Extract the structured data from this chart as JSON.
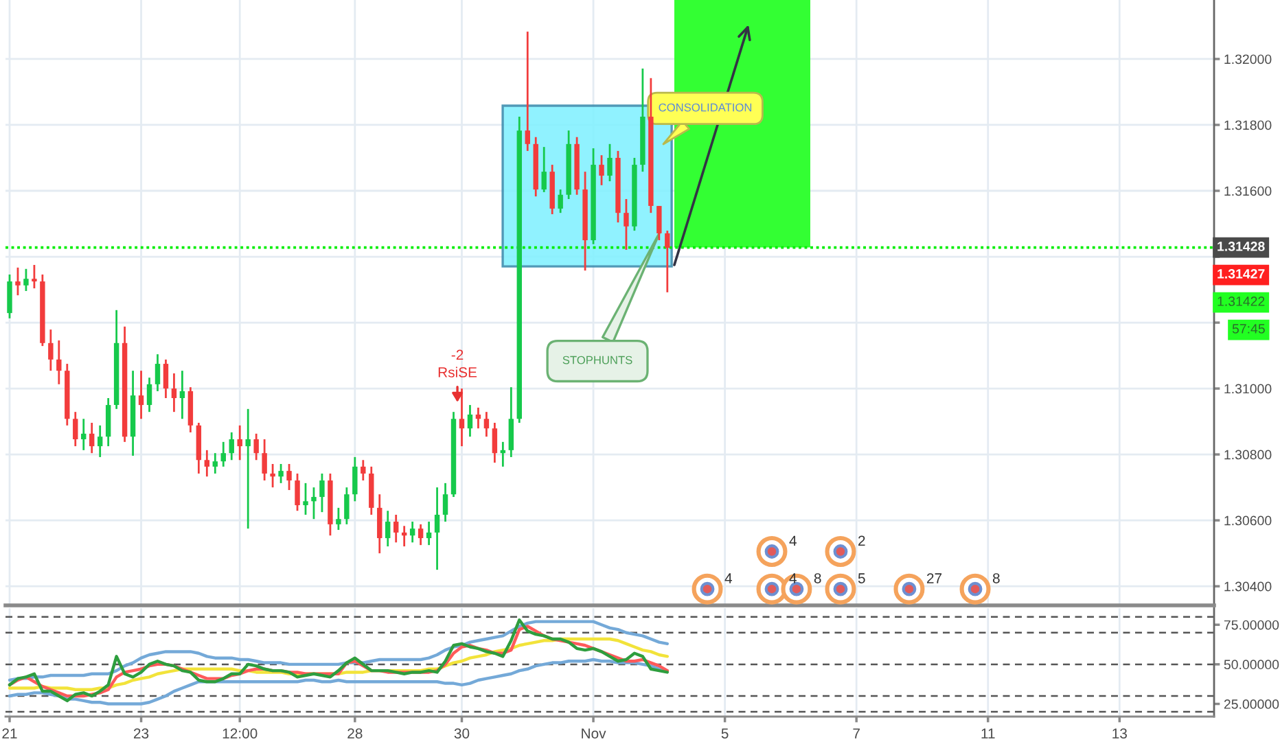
{
  "chart_data": [
    {
      "type": "candlestick",
      "categories": [
        null,
        null,
        null,
        null,
        null,
        null,
        null,
        null,
        null,
        null,
        null,
        null,
        null,
        null,
        null,
        null,
        null,
        null,
        null,
        null,
        null,
        null,
        null,
        null,
        null,
        null,
        null,
        null,
        null,
        null,
        null,
        null,
        null,
        null,
        null,
        null,
        null,
        null,
        null,
        null,
        null,
        null,
        null,
        null,
        null,
        null,
        null,
        null,
        null,
        null,
        null,
        null,
        null,
        null,
        null,
        null,
        null,
        null,
        null,
        null,
        null,
        null,
        null,
        null,
        null,
        null,
        null,
        null,
        null,
        null,
        null,
        null,
        null,
        null,
        null,
        null,
        null,
        null,
        null,
        null,
        null,
        null,
        null,
        null,
        null,
        null,
        null,
        null,
        null,
        null,
        null,
        null,
        null,
        null,
        null,
        null,
        null,
        null,
        null,
        null,
        null,
        null,
        null,
        null,
        null,
        null,
        null,
        null,
        null,
        null,
        null,
        null,
        null,
        null,
        null,
        null,
        null,
        null,
        null,
        null,
        null,
        null,
        null,
        null,
        null,
        null,
        null,
        null,
        null,
        null,
        null,
        null,
        null,
        null,
        null,
        null,
        null,
        null,
        null,
        null,
        null,
        null,
        null,
        null,
        null,
        null,
        null
      ],
      "ohlc": [
        [
          1.31229,
          1.31346,
          1.31213,
          1.31325
        ],
        [
          1.31325,
          1.31367,
          1.31283,
          1.31313
        ],
        [
          1.31313,
          1.31363,
          1.31296,
          1.31333
        ],
        [
          1.31333,
          1.31375,
          1.31304,
          1.31325
        ],
        [
          1.31325,
          1.31346,
          1.31129,
          1.31138
        ],
        [
          1.31138,
          1.31179,
          1.31054,
          1.31088
        ],
        [
          1.31088,
          1.31146,
          1.31013,
          1.31054
        ],
        [
          1.31054,
          1.31075,
          1.30888,
          1.30908
        ],
        [
          1.30908,
          1.30929,
          1.30825,
          1.30846
        ],
        [
          1.30846,
          1.30908,
          1.30813,
          1.30863
        ],
        [
          1.30863,
          1.30896,
          1.30804,
          1.30825
        ],
        [
          1.30825,
          1.30888,
          1.30792,
          1.30854
        ],
        [
          1.30854,
          1.30971,
          1.30825,
          1.3095
        ],
        [
          1.3095,
          1.31238,
          1.30938,
          1.31138
        ],
        [
          1.31138,
          1.31188,
          1.30838,
          1.30854
        ],
        [
          1.30854,
          1.31054,
          1.30796,
          1.30979
        ],
        [
          1.30979,
          1.31054,
          1.30908,
          1.3095
        ],
        [
          1.3095,
          1.31033,
          1.30929,
          1.31013
        ],
        [
          1.31013,
          1.31104,
          1.30992,
          1.31075
        ],
        [
          1.31075,
          1.31088,
          1.30971,
          1.31
        ],
        [
          1.31,
          1.31046,
          1.30929,
          1.30971
        ],
        [
          1.30971,
          1.31054,
          1.30908,
          1.30992
        ],
        [
          1.30992,
          1.31004,
          1.30867,
          1.30888
        ],
        [
          1.30888,
          1.30896,
          1.30742,
          1.30783
        ],
        [
          1.30783,
          1.30813,
          1.30733,
          1.30763
        ],
        [
          1.30763,
          1.30804,
          1.30742,
          1.30779
        ],
        [
          1.30779,
          1.30838,
          1.30763,
          1.30804
        ],
        [
          1.30804,
          1.30867,
          1.30783,
          1.30846
        ],
        [
          1.30846,
          1.30888,
          1.30783,
          1.30825
        ],
        [
          1.30825,
          1.30938,
          1.30575,
          1.30846
        ],
        [
          1.30846,
          1.30863,
          1.30783,
          1.30804
        ],
        [
          1.30804,
          1.30846,
          1.30721,
          1.30742
        ],
        [
          1.30742,
          1.30771,
          1.307,
          1.30733
        ],
        [
          1.30733,
          1.30771,
          1.30713,
          1.3075
        ],
        [
          1.3075,
          1.30771,
          1.30692,
          1.30721
        ],
        [
          1.30721,
          1.30742,
          1.30629,
          1.30646
        ],
        [
          1.30646,
          1.30713,
          1.30617,
          1.30658
        ],
        [
          1.30658,
          1.307,
          1.30604,
          1.30671
        ],
        [
          1.30671,
          1.30742,
          1.30625,
          1.30721
        ],
        [
          1.30721,
          1.30742,
          1.30554,
          1.30588
        ],
        [
          1.30588,
          1.30638,
          1.30571,
          1.30604
        ],
        [
          1.30604,
          1.307,
          1.30588,
          1.30679
        ],
        [
          1.30679,
          1.30792,
          1.30658,
          1.30763
        ],
        [
          1.30763,
          1.30783,
          1.30721,
          1.30742
        ],
        [
          1.30742,
          1.30763,
          1.30617,
          1.30638
        ],
        [
          1.30638,
          1.30679,
          1.305,
          1.30546
        ],
        [
          1.30546,
          1.30629,
          1.30521,
          1.30596
        ],
        [
          1.30596,
          1.30617,
          1.30533,
          1.30563
        ],
        [
          1.30563,
          1.30583,
          1.30521,
          1.30554
        ],
        [
          1.30554,
          1.30596,
          1.30533,
          1.30575
        ],
        [
          1.30575,
          1.30588,
          1.30525,
          1.30546
        ],
        [
          1.30546,
          1.30596,
          1.30525,
          1.30563
        ],
        [
          1.30563,
          1.307,
          1.3045,
          1.30617
        ],
        [
          1.30617,
          1.30713,
          1.30596,
          1.30679
        ],
        [
          1.30679,
          1.30929,
          1.30671,
          1.30908
        ],
        [
          1.30908,
          1.31,
          1.30825,
          1.30879
        ],
        [
          1.30879,
          1.3095,
          1.30854,
          1.30921
        ],
        [
          1.30921,
          1.30942,
          1.30879,
          1.30908
        ],
        [
          1.30908,
          1.30929,
          1.30854,
          1.30879
        ],
        [
          1.30879,
          1.30896,
          1.30775,
          1.30804
        ],
        [
          1.30804,
          1.30838,
          1.30763,
          1.30813
        ],
        [
          1.30813,
          1.31004,
          1.30792,
          1.30908
        ],
        [
          1.30908,
          1.31825,
          1.30896,
          1.31783
        ],
        [
          1.31783,
          1.32083,
          1.31721,
          1.31742
        ],
        [
          1.31742,
          1.31763,
          1.31583,
          1.31604
        ],
        [
          1.31604,
          1.31733,
          1.31596,
          1.31658
        ],
        [
          1.31658,
          1.31679,
          1.31529,
          1.31546
        ],
        [
          1.31546,
          1.31604,
          1.31533,
          1.31588
        ],
        [
          1.31588,
          1.31783,
          1.31575,
          1.31742
        ],
        [
          1.31742,
          1.31763,
          1.31588,
          1.31604
        ],
        [
          1.31604,
          1.31658,
          1.31358,
          1.3145
        ],
        [
          1.3145,
          1.31729,
          1.31438,
          1.31679
        ],
        [
          1.31679,
          1.31708,
          1.31617,
          1.31646
        ],
        [
          1.31646,
          1.31742,
          1.31629,
          1.317
        ],
        [
          1.317,
          1.31721,
          1.31504,
          1.31533
        ],
        [
          1.31533,
          1.31575,
          1.31421,
          1.31492
        ],
        [
          1.31492,
          1.317,
          1.31479,
          1.31679
        ],
        [
          1.31679,
          1.31971,
          1.31658,
          1.31825
        ],
        [
          1.31825,
          1.31942,
          1.31533,
          1.31554
        ],
        [
          1.31554,
          1.31554,
          1.3145,
          1.31471
        ],
        [
          1.31471,
          1.31479,
          1.31292,
          1.31427
        ],
        null,
        null,
        null,
        null,
        null,
        null,
        null,
        null,
        null,
        null,
        null,
        null,
        null,
        null,
        null,
        null,
        null,
        null,
        null,
        null,
        null,
        null,
        null,
        null,
        null,
        null,
        null,
        null,
        null,
        null,
        null,
        null,
        null,
        null,
        null,
        null,
        null,
        null,
        null,
        null,
        null,
        null,
        null,
        null,
        null,
        null,
        null,
        null,
        null,
        null,
        null,
        null,
        null,
        null,
        null,
        null,
        null,
        null,
        null,
        null,
        null,
        null,
        null,
        null,
        null,
        null
      ],
      "colors": [
        "#16c94b",
        "#f23c3c",
        "#16c94b",
        "#f23c3c",
        "#f23c3c",
        "#f23c3c",
        "#f23c3c",
        "#f23c3c",
        "#f23c3c",
        "#16c94b",
        "#f23c3c",
        "#16c94b",
        "#16c94b",
        "#16c94b",
        "#f23c3c",
        "#16c94b",
        "#f23c3c",
        "#16c94b",
        "#16c94b",
        "#f23c3c",
        "#f23c3c",
        "#16c94b",
        "#f23c3c",
        "#f23c3c",
        "#f23c3c",
        "#16c94b",
        "#16c94b",
        "#16c94b",
        "#f23c3c",
        "#16c94b",
        "#f23c3c",
        "#f23c3c",
        "#f23c3c",
        "#16c94b",
        "#f23c3c",
        "#f23c3c",
        "#16c94b",
        "#16c94b",
        "#16c94b",
        "#f23c3c",
        "#16c94b",
        "#16c94b",
        "#16c94b",
        "#f23c3c",
        "#f23c3c",
        "#f23c3c",
        "#16c94b",
        "#f23c3c",
        "#f23c3c",
        "#16c94b",
        "#f23c3c",
        "#16c94b",
        "#16c94b",
        "#16c94b",
        "#16c94b",
        "#f23c3c",
        "#16c94b",
        "#f23c3c",
        "#f23c3c",
        "#f23c3c",
        "#16c94b",
        "#16c94b",
        "#16c94b",
        "#f23c3c",
        "#f23c3c",
        "#16c94b",
        "#f23c3c",
        "#16c94b",
        "#16c94b",
        "#f23c3c",
        "#f23c3c",
        "#16c94b",
        "#f23c3c",
        "#16c94b",
        "#f23c3c",
        "#f23c3c",
        "#16c94b",
        "#16c94b",
        "#f23c3c",
        "#f23c3c",
        "#f23c3c",
        null,
        null,
        null,
        null,
        null,
        null,
        null,
        null,
        null,
        null,
        null,
        null,
        null,
        null,
        null,
        null,
        null,
        null,
        null,
        null,
        null,
        null,
        null,
        null,
        null,
        null,
        null,
        null,
        null,
        null,
        null,
        null,
        null,
        null,
        null,
        null,
        null,
        null,
        null,
        null,
        null,
        null,
        null,
        null,
        null,
        null,
        null,
        null,
        null,
        null,
        null,
        null,
        null,
        null,
        null,
        null,
        null,
        null,
        null,
        null,
        null,
        null,
        null,
        null,
        null,
        null
      ],
      "ylim": [
        1.30342,
        1.32179
      ],
      "yticks": [
        {
          "value": 1.304,
          "label": "1.30400"
        },
        {
          "value": 1.306,
          "label": "1.30600"
        },
        {
          "value": 1.308,
          "label": "1.30800"
        },
        {
          "value": 1.31,
          "label": "1.31000"
        },
        {
          "value": 1.312,
          "label": null
        },
        {
          "value": 1.314,
          "label": null
        },
        {
          "value": 1.316,
          "label": "1.31600"
        },
        {
          "value": 1.318,
          "label": "1.31800"
        },
        {
          "value": 1.32,
          "label": "1.32000"
        }
      ],
      "grid": true,
      "tick_labels": "y",
      "ref_lines": [
        {
          "axis": "y",
          "value": 1.31428,
          "label": "1.31428",
          "color": "#00ee00",
          "line_style": "dotted"
        }
      ],
      "bands": [
        {
          "axis": "y",
          "from": 1.31428,
          "to": 1.32179,
          "color": "#33ff33"
        }
      ],
      "annotations": [
        "-2\nRsiSE",
        "STOPHUNTS",
        "CONSOLIDATION",
        "1.31427",
        "1.31422",
        "57:45",
        "4",
        "4",
        "4",
        "8",
        "5",
        "2",
        "27",
        "8"
      ]
    },
    {
      "type": "line",
      "categories": [
        "21",
        null,
        null,
        null,
        null,
        null,
        null,
        null,
        null,
        null,
        null,
        null,
        null,
        null,
        null,
        null,
        "23",
        null,
        null,
        null,
        null,
        null,
        null,
        null,
        null,
        null,
        null,
        null,
        "12:00",
        null,
        null,
        null,
        null,
        null,
        null,
        null,
        null,
        null,
        null,
        null,
        null,
        null,
        "28",
        null,
        null,
        null,
        null,
        null,
        null,
        null,
        null,
        null,
        null,
        null,
        null,
        "30",
        null,
        null,
        null,
        null,
        null,
        null,
        null,
        null,
        null,
        null,
        null,
        null,
        null,
        null,
        null,
        "Nov",
        null,
        null,
        null,
        null,
        null,
        null,
        null,
        null,
        null,
        null,
        null,
        null,
        null,
        null,
        null,
        "5",
        null,
        null,
        null,
        null,
        null,
        null,
        null,
        null,
        null,
        null,
        null,
        null,
        null,
        null,
        null,
        "7",
        null,
        null,
        null,
        null,
        null,
        null,
        null,
        null,
        null,
        null,
        null,
        null,
        null,
        null,
        null,
        "11",
        null,
        null,
        null,
        null,
        null,
        null,
        null,
        null,
        null,
        null,
        null,
        null,
        null,
        null,
        null,
        "13",
        null,
        null,
        null,
        null,
        null,
        null,
        null,
        null,
        null,
        null,
        null
      ],
      "series": [
        {
          "color": "#f2e33a",
          "values": [
            35,
            35,
            35,
            35,
            36,
            35,
            35,
            35,
            34,
            34,
            34,
            35,
            35,
            37,
            38,
            40,
            41,
            42,
            44,
            45,
            46,
            47,
            47,
            47,
            47,
            47,
            47,
            47,
            46,
            46,
            45,
            45,
            45,
            45,
            44,
            44,
            44,
            44,
            44,
            44,
            44,
            45,
            45,
            45,
            46,
            46,
            46,
            46,
            46,
            46,
            46,
            47,
            47,
            49,
            51,
            52,
            54,
            55,
            56,
            58,
            59,
            60,
            62,
            63,
            64,
            65,
            65,
            66,
            66,
            66,
            66,
            66,
            66,
            66,
            65,
            63,
            61,
            59,
            58,
            56,
            55,
            null,
            null,
            null,
            null,
            null,
            null,
            null,
            null,
            null,
            null,
            null,
            null,
            null,
            null,
            null,
            null,
            null,
            null,
            null,
            null,
            null,
            null,
            null,
            null,
            null,
            null,
            null,
            null,
            null,
            null,
            null,
            null,
            null,
            null,
            null,
            null,
            null,
            null,
            null,
            null,
            null,
            null,
            null,
            null,
            null,
            null,
            null,
            null,
            null,
            null,
            null,
            null,
            null,
            null,
            null,
            null,
            null,
            null,
            null,
            null,
            null,
            null,
            null,
            null,
            null,
            null
          ]
        },
        {
          "color": "#74a9d8",
          "values": [
            40,
            41,
            41,
            42,
            42,
            43,
            43,
            43,
            43,
            43,
            44,
            44,
            44,
            46,
            49,
            51,
            54,
            56,
            57,
            58,
            58,
            58,
            58,
            57,
            55,
            54,
            54,
            54,
            53,
            53,
            52,
            51,
            51,
            51,
            50,
            50,
            50,
            50,
            50,
            50,
            50,
            51,
            51,
            51,
            52,
            53,
            53,
            53,
            53,
            53,
            53,
            54,
            56,
            59,
            61,
            62,
            64,
            65,
            66,
            67,
            68,
            71,
            74,
            76,
            77,
            77,
            77,
            77,
            77,
            77,
            77,
            77,
            75,
            73,
            72,
            70,
            69,
            68,
            66,
            64,
            63,
            null,
            null,
            null,
            null,
            null,
            null,
            null,
            null,
            null,
            null,
            null,
            null,
            null,
            null,
            null,
            null,
            null,
            null,
            null,
            null,
            null,
            null,
            null,
            null,
            null,
            null,
            null,
            null,
            null,
            null,
            null,
            null,
            null,
            null,
            null,
            null,
            null,
            null,
            null,
            null,
            null,
            null,
            null,
            null,
            null,
            null,
            null,
            null,
            null,
            null,
            null,
            null,
            null,
            null,
            null,
            null,
            null,
            null,
            null,
            null,
            null,
            null,
            null,
            null,
            null,
            null
          ]
        },
        {
          "color": "#74a9d8",
          "values": [
            30,
            31,
            31,
            32,
            32,
            31,
            30,
            28,
            28,
            27,
            26,
            26,
            25,
            25,
            25,
            25,
            25,
            26,
            28,
            30,
            33,
            35,
            37,
            39,
            39,
            39,
            39,
            39,
            39,
            39,
            39,
            39,
            39,
            39,
            39,
            39,
            40,
            40,
            39,
            39,
            40,
            39,
            39,
            39,
            39,
            39,
            39,
            39,
            39,
            39,
            39,
            39,
            39,
            38,
            38,
            37,
            38,
            40,
            41,
            42,
            43,
            44,
            46,
            47,
            49,
            50,
            51,
            51,
            52,
            52,
            52,
            53,
            52,
            52,
            51,
            51,
            51,
            50,
            49,
            47,
            46,
            null,
            null,
            null,
            null,
            null,
            null,
            null,
            null,
            null,
            null,
            null,
            null,
            null,
            null,
            null,
            null,
            null,
            null,
            null,
            null,
            null,
            null,
            null,
            null,
            null,
            null,
            null,
            null,
            null,
            null,
            null,
            null,
            null,
            null,
            null,
            null,
            null,
            null,
            null,
            null,
            null,
            null,
            null,
            null,
            null,
            null,
            null,
            null,
            null,
            null,
            null,
            null,
            null,
            null,
            null,
            null,
            null,
            null,
            null,
            null,
            null,
            null,
            null,
            null,
            null,
            null
          ]
        },
        {
          "color": "#ff5a5a",
          "values": [
            37,
            40,
            42,
            39,
            36,
            34,
            32,
            30,
            30,
            30,
            31,
            32,
            34,
            42,
            45,
            46,
            47,
            49,
            50,
            50,
            49,
            47,
            45,
            43,
            41,
            41,
            41,
            43,
            44,
            46,
            47,
            47,
            46,
            46,
            45,
            45,
            44,
            44,
            44,
            44,
            44,
            51,
            52,
            49,
            46,
            46,
            45,
            45,
            45,
            45,
            45,
            45,
            46,
            50,
            57,
            61,
            62,
            60,
            59,
            57,
            57,
            59,
            72,
            74,
            71,
            68,
            66,
            65,
            64,
            63,
            62,
            60,
            58,
            56,
            54,
            52,
            52,
            53,
            51,
            49,
            46,
            null,
            null,
            null,
            null,
            null,
            null,
            null,
            null,
            null,
            null,
            null,
            null,
            null,
            null,
            null,
            null,
            null,
            null,
            null,
            null,
            null,
            null,
            null,
            null,
            null,
            null,
            null,
            null,
            null,
            null,
            null,
            null,
            null,
            null,
            null,
            null,
            null,
            null,
            null,
            null,
            null,
            null,
            null,
            null,
            null,
            null,
            null,
            null,
            null,
            null,
            null,
            null,
            null,
            null,
            null,
            null,
            null,
            null,
            null,
            null,
            null,
            null,
            null,
            null,
            null,
            null
          ]
        },
        {
          "color": "#2e9e3e",
          "values": [
            37,
            41,
            42,
            44,
            33,
            33,
            30,
            27,
            31,
            32,
            30,
            33,
            37,
            55,
            44,
            42,
            45,
            50,
            52,
            50,
            49,
            46,
            45,
            40,
            39,
            39,
            41,
            44,
            44,
            50,
            49,
            47,
            46,
            46,
            45,
            42,
            43,
            44,
            43,
            42,
            46,
            51,
            54,
            50,
            46,
            46,
            46,
            45,
            44,
            45,
            45,
            46,
            45,
            52,
            62,
            63,
            61,
            60,
            58,
            57,
            55,
            65,
            78,
            71,
            69,
            68,
            66,
            66,
            64,
            60,
            59,
            60,
            58,
            55,
            52,
            53,
            57,
            55,
            47,
            46,
            45,
            null,
            null,
            null,
            null,
            null,
            null,
            null,
            null,
            null,
            null,
            null,
            null,
            null,
            null,
            null,
            null,
            null,
            null,
            null,
            null,
            null,
            null,
            null,
            null,
            null,
            null,
            null,
            null,
            null,
            null,
            null,
            null,
            null,
            null,
            null,
            null,
            null,
            null,
            null,
            null,
            null,
            null,
            null,
            null,
            null,
            null,
            null,
            null,
            null,
            null,
            null,
            null,
            null,
            null,
            null,
            null,
            null,
            null,
            null,
            null,
            null,
            null,
            null,
            null,
            null,
            null
          ]
        }
      ],
      "ylim": [
        17,
        85.5
      ],
      "yticks": [
        {
          "value": 25,
          "label": "25.00000"
        },
        {
          "value": 50,
          "label": "50.00000"
        },
        {
          "value": 75,
          "label": "75.00000"
        }
      ],
      "grid": "x",
      "ref_lines": [
        {
          "axis": "y",
          "value": 80,
          "color": "#555555",
          "line_style": "dashed"
        },
        {
          "axis": "y",
          "value": 70,
          "color": "#555555",
          "line_style": "dashed"
        },
        {
          "axis": "y",
          "value": 50,
          "color": "#555555",
          "line_style": "dashed"
        },
        {
          "axis": "y",
          "value": 30,
          "color": "#555555",
          "line_style": "dashed"
        },
        {
          "axis": "y",
          "value": 20,
          "color": "#555555",
          "line_style": "dashed"
        }
      ]
    }
  ]
}
